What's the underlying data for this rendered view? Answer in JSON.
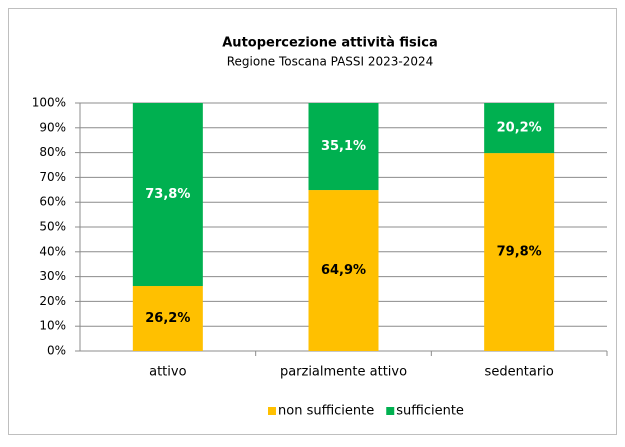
{
  "chart_data": {
    "type": "bar",
    "stacked": true,
    "title": "Autopercezione attività fisica",
    "subtitle": "Regione Toscana PASSI 2023-2024",
    "categories": [
      "attivo",
      "parzialmente attivo",
      "sedentario"
    ],
    "series": [
      {
        "name": "non sufficiente",
        "color": "#ffc000",
        "label_color": "#000000",
        "values": [
          26.2,
          64.9,
          79.8
        ],
        "value_labels": [
          "26,2%",
          "64,9%",
          "79,8%"
        ]
      },
      {
        "name": "sufficiente",
        "color": "#00b050",
        "label_color": "#ffffff",
        "values": [
          73.8,
          35.1,
          20.2
        ],
        "value_labels": [
          "73,8%",
          "35,1%",
          "20,2%"
        ]
      }
    ],
    "ylim": [
      0,
      100
    ],
    "yticks": [
      {
        "value": 0,
        "label": "0%"
      },
      {
        "value": 10,
        "label": "10%"
      },
      {
        "value": 20,
        "label": "20%"
      },
      {
        "value": 30,
        "label": "30%"
      },
      {
        "value": 40,
        "label": "40%"
      },
      {
        "value": 50,
        "label": "50%"
      },
      {
        "value": 60,
        "label": "60%"
      },
      {
        "value": 70,
        "label": "70%"
      },
      {
        "value": 80,
        "label": "80%"
      },
      {
        "value": 90,
        "label": "90%"
      },
      {
        "value": 100,
        "label": "100%"
      }
    ],
    "grid": true,
    "legend": "bottom"
  }
}
